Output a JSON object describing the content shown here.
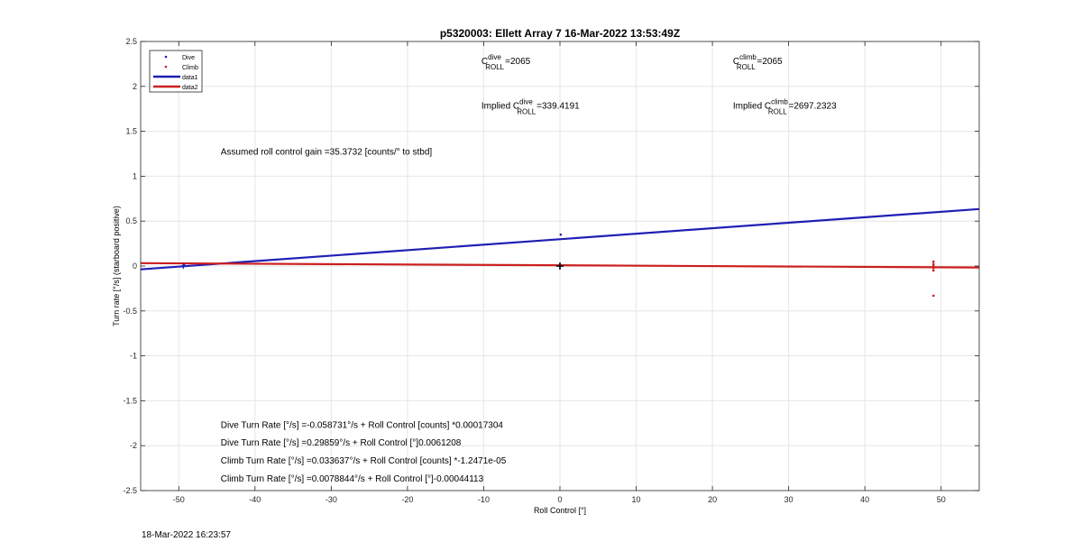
{
  "timestamp": "18-Mar-2022 16:23:57",
  "colors": {
    "dive": "#1f1fb4",
    "climb": "#cc1f1f",
    "grid": "#e6e6e6",
    "axis": "#262626"
  },
  "chart_data": {
    "type": "scatter",
    "title": "p5320003: Ellett Array 7 16-Mar-2022 13:53:49Z",
    "xlabel": "Roll Control [°]",
    "ylabel": "Turn rate [°/s] (starboard positive)",
    "xlim": [
      -55,
      55
    ],
    "ylim": [
      -2.5,
      2.5
    ],
    "xticks": [
      -50,
      -40,
      -30,
      -20,
      -10,
      0,
      10,
      20,
      30,
      40,
      50
    ],
    "yticks": [
      -2.5,
      -2,
      -1.5,
      -1,
      -0.5,
      0,
      0.5,
      1,
      1.5,
      2,
      2.5
    ],
    "xtick_labels": [
      "-50",
      "-40",
      "-30",
      "-20",
      "-10",
      "0",
      "10",
      "20",
      "30",
      "40",
      "50"
    ],
    "ytick_labels": [
      "-2.5",
      "-2",
      "-1.5",
      "-1",
      "-0.5",
      "0",
      "0.5",
      "1",
      "1.5",
      "2",
      "2.5"
    ],
    "grid": true,
    "legend_position": "top-left",
    "legend": [
      {
        "label": "Dive",
        "kind": "marker",
        "series": "dive"
      },
      {
        "label": "Climb",
        "kind": "marker",
        "series": "climb"
      },
      {
        "label": "data1",
        "kind": "line",
        "series": "dive"
      },
      {
        "label": "data2",
        "kind": "line",
        "series": "climb"
      }
    ],
    "series": [
      {
        "name": "Dive",
        "kind": "points",
        "color_key": "dive",
        "points": [
          [
            -49.5,
            0.0
          ],
          [
            -49.3,
            0.01
          ],
          [
            0.1,
            0.35
          ],
          [
            0.0,
            0.0
          ]
        ]
      },
      {
        "name": "Climb",
        "kind": "points",
        "color_key": "climb",
        "points": [
          [
            49.0,
            0.05
          ],
          [
            49.0,
            0.02
          ],
          [
            49.0,
            -0.02
          ],
          [
            49.0,
            -0.05
          ],
          [
            49.0,
            0.0
          ],
          [
            49.0,
            -0.33
          ],
          [
            0.0,
            0.0
          ]
        ]
      },
      {
        "name": "data1",
        "kind": "line",
        "color_key": "dive",
        "points": [
          [
            -55,
            -0.037
          ],
          [
            55,
            0.635
          ]
        ]
      },
      {
        "name": "data2",
        "kind": "line",
        "color_key": "climb",
        "points": [
          [
            -55,
            0.032
          ],
          [
            55,
            -0.016
          ]
        ]
      }
    ],
    "annotations": [
      {
        "kind": "c",
        "prefix": "C",
        "sup": "dive",
        "sub": "ROLL",
        "value": "=2065",
        "at": [
          -10.3,
          2.25
        ]
      },
      {
        "kind": "c",
        "prefix": "C",
        "sup": "climb",
        "sub": "ROLL",
        "value": "=2065",
        "at": [
          22.7,
          2.25
        ]
      },
      {
        "kind": "c",
        "prefix": "Implied C",
        "sup": "dive",
        "sub": "ROLL",
        "value": "=339.4191",
        "at": [
          -10.3,
          1.75
        ]
      },
      {
        "kind": "c",
        "prefix": "Implied C",
        "sup": "climb",
        "sub": "ROLL",
        "value": "=2697.2323",
        "at": [
          22.7,
          1.75
        ]
      },
      {
        "kind": "text",
        "text": "Assumed roll control gain =35.3732 [counts/° to stbd]",
        "at": [
          -44.5,
          1.24
        ]
      },
      {
        "kind": "text",
        "text": "Dive Turn Rate [°/s] =-0.058731°/s + Roll Control [counts] *0.00017304",
        "at": [
          -44.5,
          -1.8
        ]
      },
      {
        "kind": "text",
        "text": "Dive Turn Rate [°/s] =0.29859°/s + Roll Control [°]0.0061208",
        "at": [
          -44.5,
          -2.0
        ]
      },
      {
        "kind": "text",
        "text": "Climb Turn Rate [°/s] =0.033637°/s + Roll Control [counts] *-1.2471e-05",
        "at": [
          -44.5,
          -2.2
        ]
      },
      {
        "kind": "text",
        "text": "Climb Turn Rate [°/s] =0.0078844°/s + Roll Control [°]-0.00044113",
        "at": [
          -44.5,
          -2.4
        ]
      }
    ],
    "center_marker": [
      0,
      0
    ]
  }
}
